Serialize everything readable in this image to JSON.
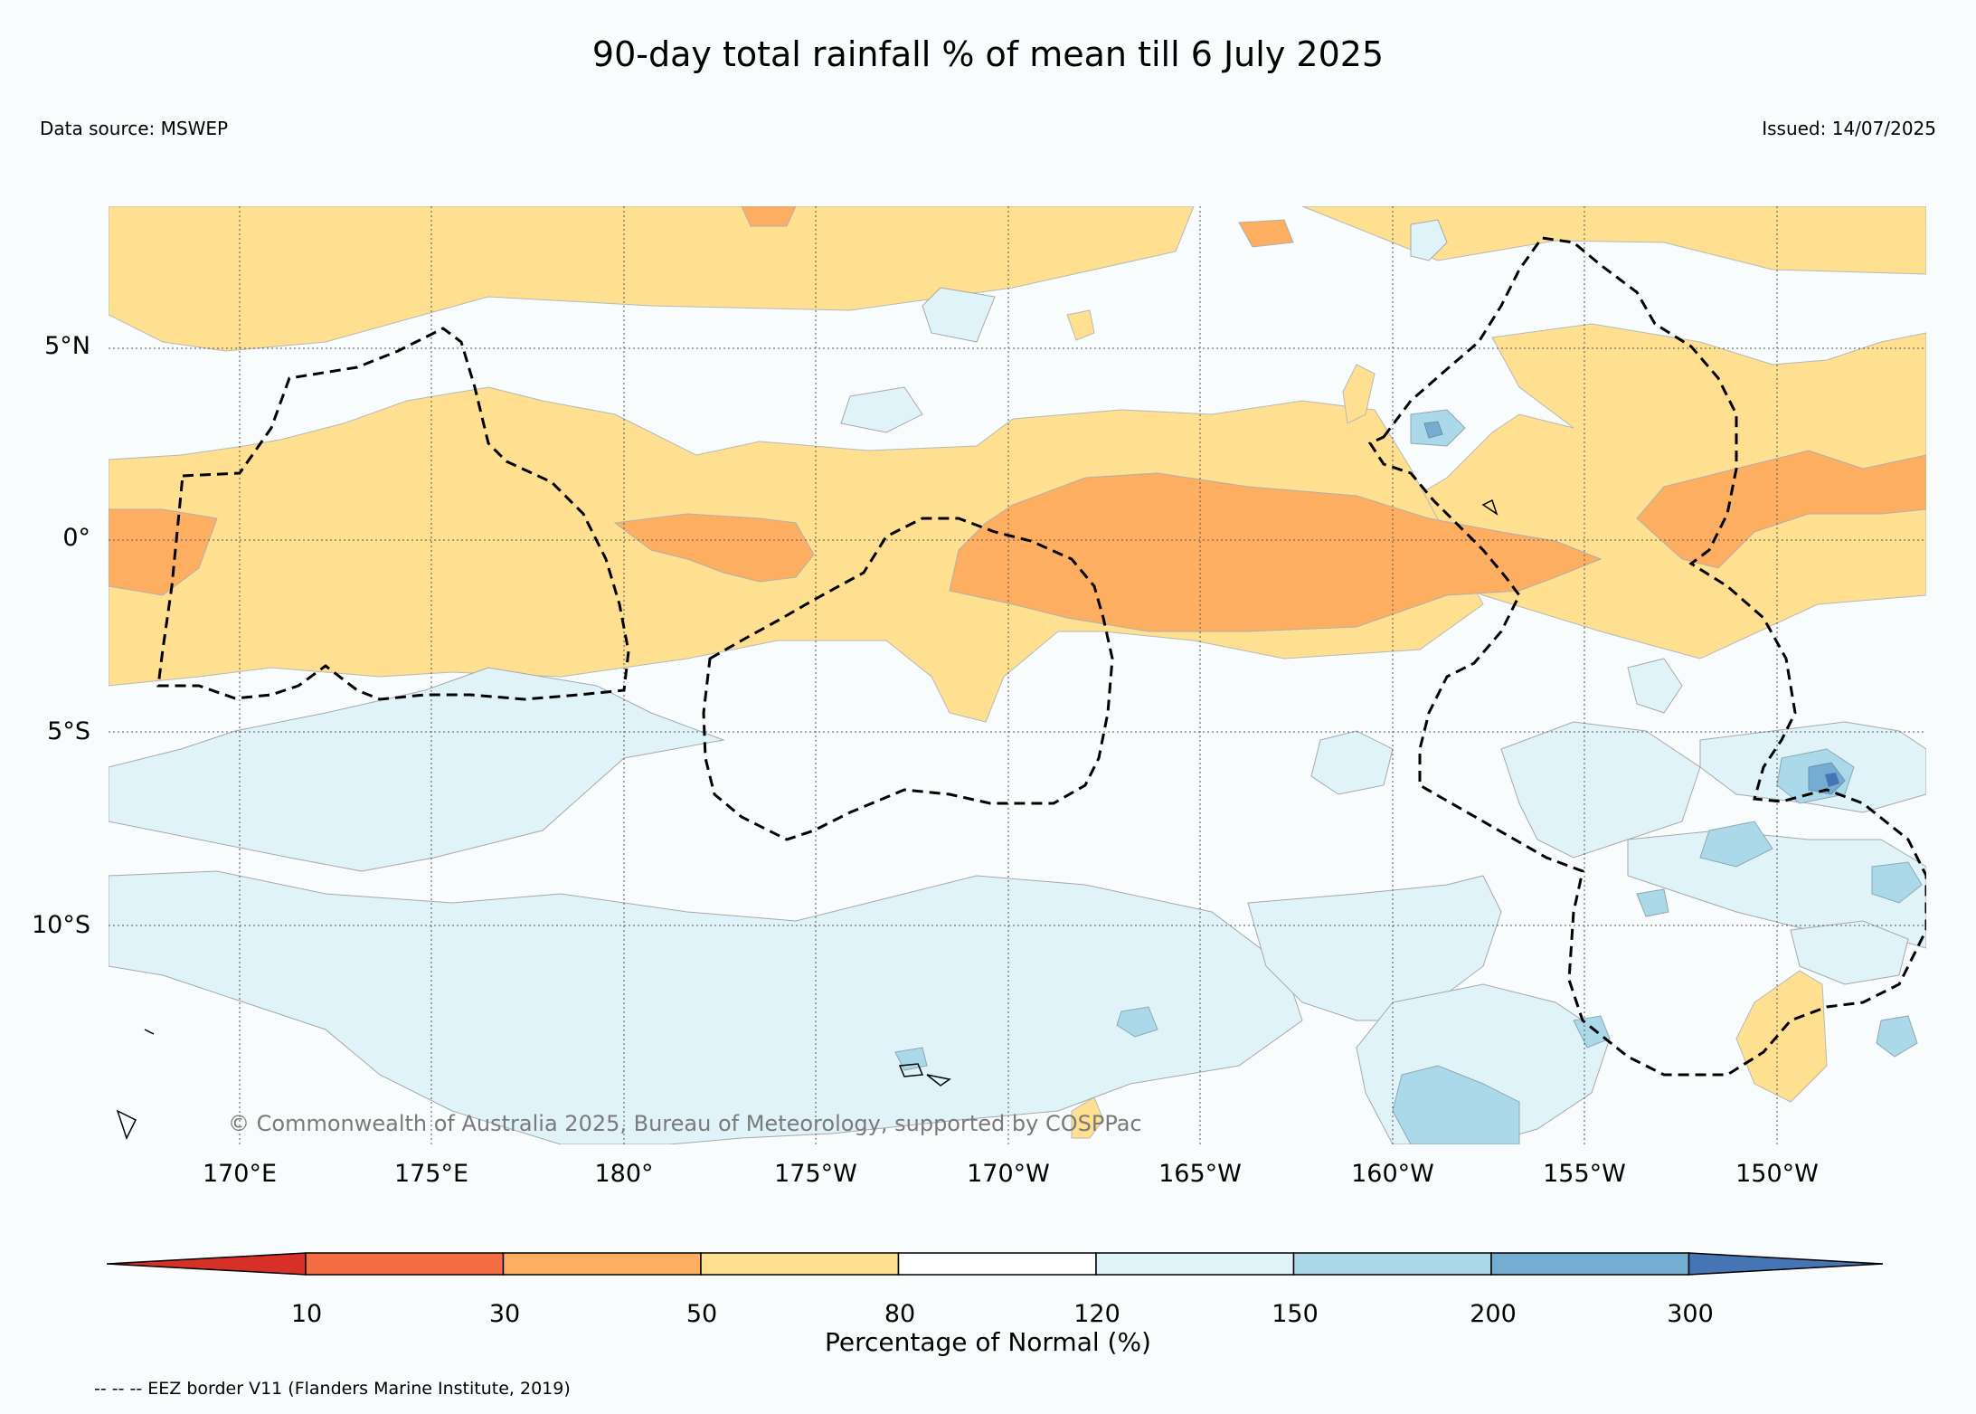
{
  "title": "90-day total rainfall % of mean till 6 July 2025",
  "data_source": "Data source: MSWEP",
  "issued": "Issued: 14/07/2025",
  "copyright": "© Commonwealth of Australia 2025, Bureau of Meteorology, supported by COSPPac",
  "latitude_labels": [
    "5°N",
    "0°",
    "5°S",
    "10°S"
  ],
  "longitude_labels": [
    "170°E",
    "175°E",
    "180°",
    "175°W",
    "170°W",
    "165°W",
    "160°W",
    "155°W",
    "150°W"
  ],
  "colorbar": {
    "label": "Percentage of Normal (%)",
    "ticks": [
      "10",
      "30",
      "50",
      "80",
      "120",
      "150",
      "200",
      "300"
    ],
    "colors": [
      "#d73027",
      "#f46d43",
      "#fdae61",
      "#fee090",
      "#ffffff",
      "#e0f3f8",
      "#abd9e9",
      "#74add1",
      "#4575b4"
    ]
  },
  "eez_note": "-- -- -- EEZ border V11 (Flanders Marine Institute, 2019)",
  "map_colors": {
    "background": "#f8fcfd",
    "dry_30_50": "#fdae61",
    "dry_50_80": "#fee090",
    "wet_120_150": "#e0f3f8",
    "wet_150_200": "#abd9e9",
    "wet_200_300": "#74add1",
    "wet_300_plus": "#4575b4"
  }
}
